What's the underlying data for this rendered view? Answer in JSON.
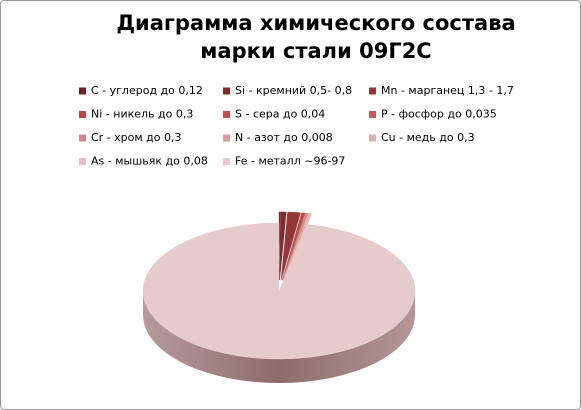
{
  "chart_data": {
    "type": "pie",
    "title": "Диаграмма химического состава марки стали 09Г2С",
    "categories": [
      "C - углерод до 0,12",
      "Si - кремний 0,5- 0,8",
      "Mn - марганец 1,3 - 1,7",
      "Ni - никель до 0,3",
      "S - сера до 0,04",
      "P - фосфор до 0,035",
      "Cr - хром до 0,3",
      "N - азот до 0,008",
      "Cu - медь до 0,3",
      "As - мышьяк до 0,08",
      "Fe - металл ~96-97"
    ],
    "values": [
      0.12,
      0.65,
      1.5,
      0.3,
      0.04,
      0.035,
      0.3,
      0.008,
      0.3,
      0.08,
      96.5
    ],
    "colors": [
      "#6e2424",
      "#7f2c2c",
      "#953535",
      "#b54a47",
      "#c0504d",
      "#c45a57",
      "#d08886",
      "#d69a98",
      "#deb0ae",
      "#e3c0bf",
      "#e6cbcb"
    ]
  }
}
